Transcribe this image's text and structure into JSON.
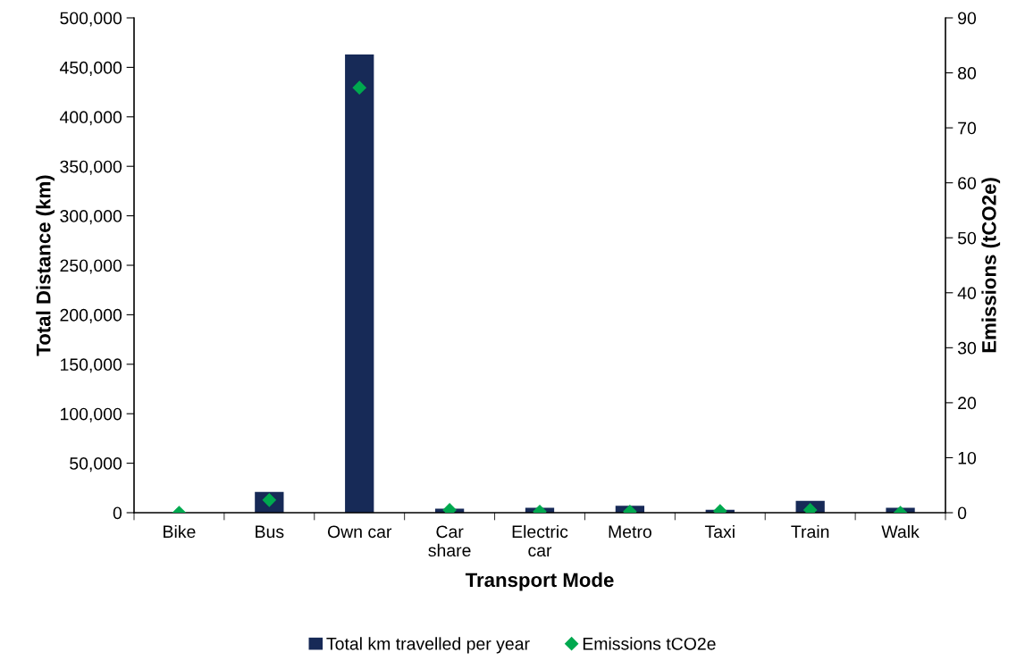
{
  "chart_data": {
    "type": "bar",
    "xlabel": "Transport Mode",
    "ylabel": "Total Distance (km)",
    "y2label": "Emissions (tCO2e)",
    "categories": [
      "Bike",
      "Bus",
      "Own car",
      "Car\nshare",
      "Electric\ncar",
      "Metro",
      "Taxi",
      "Train",
      "Walk"
    ],
    "series": [
      {
        "name": "Total km travelled per year",
        "color": "#172a57",
        "values": [
          0,
          21000,
          463000,
          4000,
          5000,
          7000,
          3000,
          12000,
          5000
        ]
      },
      {
        "name": "Emissions tCO2e",
        "type": "scatter",
        "axis": "y2",
        "marker": "diamond",
        "color": "#00a94f",
        "values": [
          0,
          2.3,
          77.3,
          0.5,
          0.2,
          0.2,
          0.3,
          0.5,
          0
        ]
      }
    ],
    "ylim": [
      0,
      500000
    ],
    "yticks": [
      {
        "value": 0,
        "label": "0"
      },
      {
        "value": 50000,
        "label": "50,000"
      },
      {
        "value": 100000,
        "label": "100,000"
      },
      {
        "value": 150000,
        "label": "150,000"
      },
      {
        "value": 200000,
        "label": "200,000"
      },
      {
        "value": 250000,
        "label": "250,000"
      },
      {
        "value": 300000,
        "label": "300,000"
      },
      {
        "value": 350000,
        "label": "350,000"
      },
      {
        "value": 400000,
        "label": "400,000"
      },
      {
        "value": 450000,
        "label": "450,000"
      },
      {
        "value": 500000,
        "label": "500,000"
      }
    ],
    "y2lim": [
      0,
      90
    ],
    "y2ticks": [
      0,
      10,
      20,
      30,
      40,
      50,
      60,
      70,
      80,
      90
    ],
    "grid": false,
    "legend": "bottom"
  }
}
